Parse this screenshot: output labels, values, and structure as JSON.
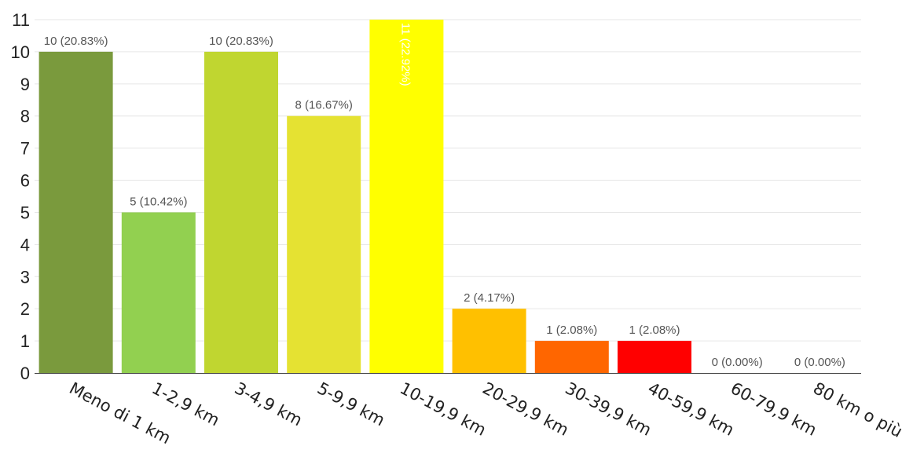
{
  "chart_data": {
    "type": "bar",
    "categories": [
      "Meno di 1 km",
      "1-2,9 km",
      "3-4,9 km",
      "5-9,9 km",
      "10-19,9 km",
      "20-29,9 km",
      "30-39,9 km",
      "40-59,9 km",
      "60-79,9 km",
      "80 km o più"
    ],
    "values": [
      10,
      5,
      10,
      8,
      11,
      2,
      1,
      1,
      0,
      0
    ],
    "data_labels": [
      "10 (20.83%)",
      "5 (10.42%)",
      "10 (20.83%)",
      "8 (16.67%)",
      "11 (22.92%)",
      "2 (4.17%)",
      "1 (2.08%)",
      "1 (2.08%)",
      "0 (0.00%)",
      "0 (0.00%)"
    ],
    "colors": [
      "#7a9a3d",
      "#92d050",
      "#c0d630",
      "#e5e232",
      "#ffff00",
      "#ffc000",
      "#ff6600",
      "#ff0000",
      "#cccccc",
      "#cccccc"
    ],
    "yticks": [
      0,
      1,
      2,
      3,
      4,
      5,
      6,
      7,
      8,
      9,
      10,
      11
    ],
    "ylim": [
      0,
      11
    ],
    "grid": true,
    "legend": "none"
  }
}
